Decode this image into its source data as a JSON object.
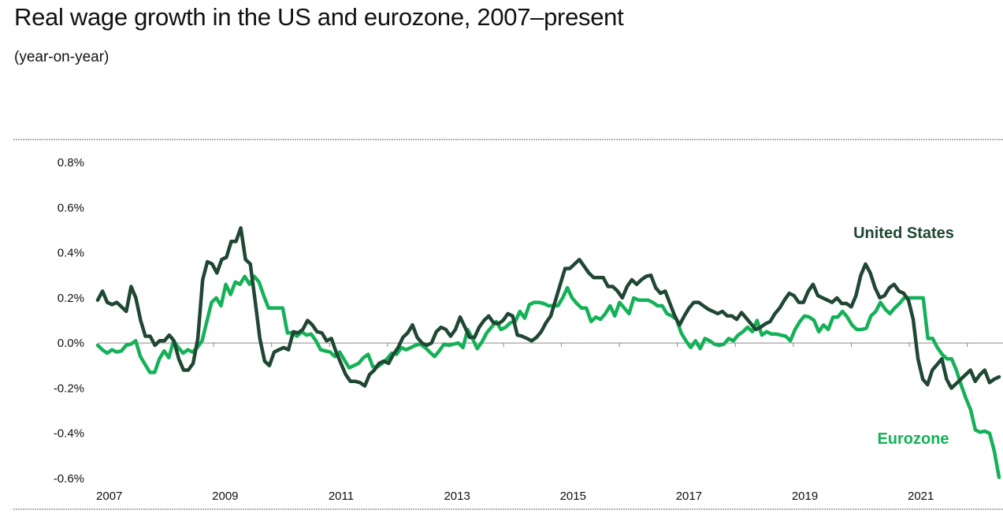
{
  "header": {
    "title": "Real wage growth in the US and eurozone, 2007–present",
    "subtitle": "(year-on-year)"
  },
  "colors": {
    "us": "#1f4733",
    "eurozone": "#14b158",
    "zero_line": "#8a8a8a",
    "frame_dots": "#555555"
  },
  "chart_data": {
    "type": "line",
    "title": "Real wage growth in the US and eurozone, 2007–present",
    "subtitle": "(year-on-year)",
    "xlabel": "",
    "ylabel": "",
    "x_range": [
      2007.0,
      2022.55
    ],
    "ylim": [
      -0.6,
      0.8
    ],
    "y_ticks": [
      0.8,
      0.6,
      0.4,
      0.2,
      0.0,
      -0.2,
      -0.4,
      -0.6
    ],
    "y_tick_labels": [
      "0.8%",
      "0.6%",
      "0.4%",
      "0.2%",
      "0.0%",
      "-0.2%",
      "-0.4%",
      "-0.6%"
    ],
    "x_ticks": [
      2007,
      2009,
      2011,
      2013,
      2015,
      2017,
      2019,
      2021
    ],
    "x_tick_labels": [
      "2007",
      "2009",
      "2011",
      "2013",
      "2015",
      "2017",
      "2019",
      "2021"
    ],
    "grid": false,
    "legend": "direct labels at right",
    "series": [
      {
        "name": "United States",
        "key": "us",
        "label_position": "upper-right",
        "values": [
          0.19,
          0.23,
          0.18,
          0.17,
          0.18,
          0.16,
          0.14,
          0.25,
          0.2,
          0.1,
          0.03,
          0.03,
          -0.01,
          0.01,
          0.01,
          0.035,
          0.01,
          -0.07,
          -0.12,
          -0.12,
          -0.09,
          0.02,
          0.28,
          0.36,
          0.35,
          0.31,
          0.37,
          0.38,
          0.45,
          0.45,
          0.51,
          0.37,
          0.35,
          0.19,
          0.02,
          -0.08,
          -0.1,
          -0.04,
          -0.03,
          -0.02,
          -0.03,
          0.05,
          0.045,
          0.06,
          0.1,
          0.08,
          0.05,
          0.045,
          0.01,
          0.02,
          -0.04,
          -0.09,
          -0.14,
          -0.17,
          -0.17,
          -0.175,
          -0.19,
          -0.14,
          -0.12,
          -0.09,
          -0.08,
          -0.09,
          -0.05,
          -0.02,
          0.025,
          0.045,
          0.08,
          0.025,
          0.0,
          -0.01,
          0.0,
          0.05,
          0.07,
          0.06,
          0.03,
          0.06,
          0.115,
          0.07,
          0.025,
          0.025,
          0.07,
          0.1,
          0.12,
          0.09,
          0.085,
          0.1,
          0.13,
          0.12,
          0.035,
          0.03,
          0.02,
          0.01,
          0.025,
          0.05,
          0.09,
          0.12,
          0.19,
          0.26,
          0.33,
          0.33,
          0.35,
          0.37,
          0.34,
          0.31,
          0.29,
          0.29,
          0.29,
          0.25,
          0.25,
          0.23,
          0.2,
          0.25,
          0.28,
          0.26,
          0.28,
          0.295,
          0.3,
          0.245,
          0.22,
          0.23,
          0.175,
          0.12,
          0.08,
          0.12,
          0.155,
          0.18,
          0.18,
          0.165,
          0.15,
          0.14,
          0.13,
          0.14,
          0.12,
          0.12,
          0.105,
          0.135,
          0.11,
          0.085,
          0.06,
          0.07,
          0.085,
          0.095,
          0.13,
          0.155,
          0.19,
          0.22,
          0.21,
          0.18,
          0.18,
          0.23,
          0.26,
          0.21,
          0.2,
          0.19,
          0.18,
          0.2,
          0.175,
          0.175,
          0.16,
          0.21,
          0.3,
          0.35,
          0.31,
          0.245,
          0.2,
          0.21,
          0.245,
          0.26,
          0.23,
          0.22,
          0.19,
          0.105,
          -0.07,
          -0.16,
          -0.185,
          -0.12,
          -0.095,
          -0.07,
          -0.16,
          -0.2,
          -0.18,
          -0.16,
          -0.14,
          -0.12,
          -0.17,
          -0.14,
          -0.12,
          -0.175,
          -0.16,
          -0.15
        ]
      },
      {
        "name": "Eurozone",
        "key": "eurozone",
        "label_position": "lower-right",
        "values": [
          -0.01,
          -0.03,
          -0.045,
          -0.03,
          -0.04,
          -0.035,
          -0.01,
          -0.005,
          0.01,
          -0.06,
          -0.095,
          -0.13,
          -0.13,
          -0.07,
          -0.035,
          -0.065,
          0.01,
          -0.02,
          -0.045,
          -0.03,
          -0.04,
          -0.02,
          0.01,
          0.095,
          0.18,
          0.2,
          0.165,
          0.26,
          0.215,
          0.27,
          0.26,
          0.295,
          0.26,
          0.295,
          0.27,
          0.21,
          0.155,
          0.155,
          0.155,
          0.155,
          0.045,
          0.045,
          0.03,
          0.05,
          0.035,
          0.04,
          0.01,
          -0.03,
          -0.035,
          -0.04,
          -0.06,
          -0.04,
          -0.075,
          -0.11,
          -0.1,
          -0.09,
          -0.065,
          -0.05,
          -0.105,
          -0.105,
          -0.09,
          -0.07,
          -0.045,
          -0.05,
          -0.02,
          -0.03,
          -0.02,
          -0.01,
          -0.005,
          -0.02,
          -0.04,
          -0.06,
          -0.035,
          -0.005,
          -0.01,
          -0.005,
          0.0,
          -0.02,
          0.06,
          0.02,
          -0.025,
          0.005,
          0.045,
          0.07,
          0.095,
          0.06,
          0.07,
          0.09,
          0.095,
          0.14,
          0.11,
          0.17,
          0.18,
          0.18,
          0.175,
          0.165,
          0.165,
          0.165,
          0.2,
          0.245,
          0.2,
          0.175,
          0.155,
          0.155,
          0.095,
          0.115,
          0.105,
          0.13,
          0.165,
          0.12,
          0.18,
          0.155,
          0.13,
          0.2,
          0.19,
          0.19,
          0.19,
          0.18,
          0.165,
          0.165,
          0.13,
          0.12,
          0.105,
          0.045,
          0.01,
          -0.02,
          0.01,
          -0.025,
          0.02,
          0.01,
          -0.005,
          -0.01,
          -0.005,
          0.02,
          0.01,
          0.035,
          0.05,
          0.07,
          0.05,
          0.1,
          0.035,
          0.05,
          0.04,
          0.04,
          0.035,
          0.03,
          0.01,
          0.06,
          0.095,
          0.12,
          0.115,
          0.1,
          0.05,
          0.08,
          0.06,
          0.115,
          0.115,
          0.14,
          0.115,
          0.08,
          0.06,
          0.06,
          0.065,
          0.12,
          0.14,
          0.18,
          0.15,
          0.13,
          0.155,
          0.175,
          0.2,
          0.2,
          0.2,
          0.2,
          0.2,
          0.02,
          0.02,
          -0.02,
          -0.05,
          -0.07,
          -0.07,
          -0.12,
          -0.185,
          -0.245,
          -0.295,
          -0.385,
          -0.395,
          -0.39,
          -0.4,
          -0.48,
          -0.595
        ]
      }
    ]
  }
}
